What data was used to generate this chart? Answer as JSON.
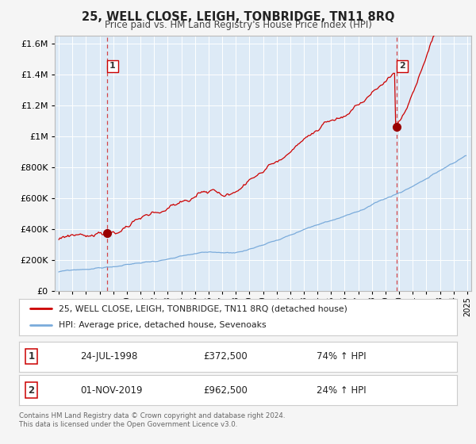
{
  "title": "25, WELL CLOSE, LEIGH, TONBRIDGE, TN11 8RQ",
  "subtitle": "Price paid vs. HM Land Registry's House Price Index (HPI)",
  "red_line_label": "25, WELL CLOSE, LEIGH, TONBRIDGE, TN11 8RQ (detached house)",
  "blue_line_label": "HPI: Average price, detached house, Sevenoaks",
  "sale1_date": "24-JUL-1998",
  "sale1_price": "£372,500",
  "sale1_hpi": "74% ↑ HPI",
  "sale1_year": 1998.55,
  "sale1_value": 372500,
  "sale2_date": "01-NOV-2019",
  "sale2_price": "£962,500",
  "sale2_hpi": "24% ↑ HPI",
  "sale2_year": 2019.83,
  "sale2_value": 962500,
  "red_color": "#cc0000",
  "blue_color": "#7aabdb",
  "plot_bg": "#ddeaf6",
  "grid_color": "#c8d8e8",
  "vline_color": "#cc0000",
  "fig_bg": "#f5f5f5",
  "footer_text": "Contains HM Land Registry data © Crown copyright and database right 2024.\nThis data is licensed under the Open Government Licence v3.0.",
  "ylim": [
    0,
    1650000
  ],
  "yticks": [
    0,
    200000,
    400000,
    600000,
    800000,
    1000000,
    1200000,
    1400000,
    1600000
  ],
  "xlim_start": 1994.7,
  "xlim_end": 2025.3
}
